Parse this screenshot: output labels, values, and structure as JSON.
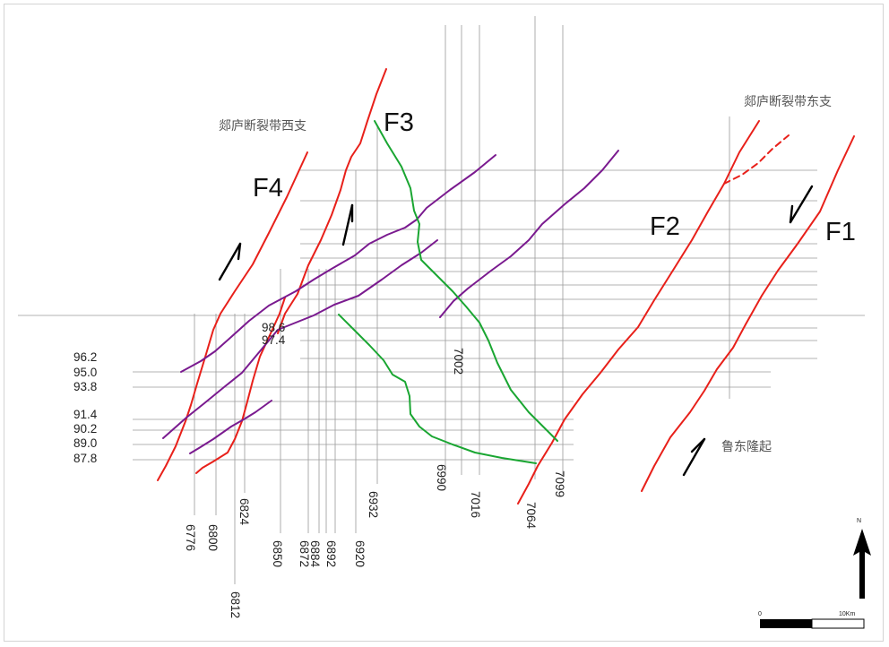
{
  "faults": {
    "f1": "F1",
    "f2": "F2",
    "f3": "F3",
    "f4": "F4"
  },
  "regions": {
    "west_branch": "郯庐断裂带西支",
    "east_branch": "郯庐断裂带东支",
    "ludong_uplift": "鲁东隆起"
  },
  "row_labels": [
    "96.2",
    "95.0",
    "93.8",
    "91.4",
    "90.2",
    "89.0",
    "87.8"
  ],
  "col_labels": [
    "6776",
    "6800",
    "6812",
    "6824",
    "6850",
    "6872",
    "6884",
    "6892",
    "6920",
    "6932",
    "6990",
    "7002",
    "7016",
    "7064",
    "7099"
  ],
  "overlap_labels": [
    "98.6",
    "97.4"
  ],
  "north_label": "N",
  "scale": {
    "start": "0",
    "end": "10Km"
  },
  "colors": {
    "fault": "#e8201a",
    "purple": "#7a1a8f",
    "green": "#1aa632",
    "grid": "#9a9a9a"
  }
}
